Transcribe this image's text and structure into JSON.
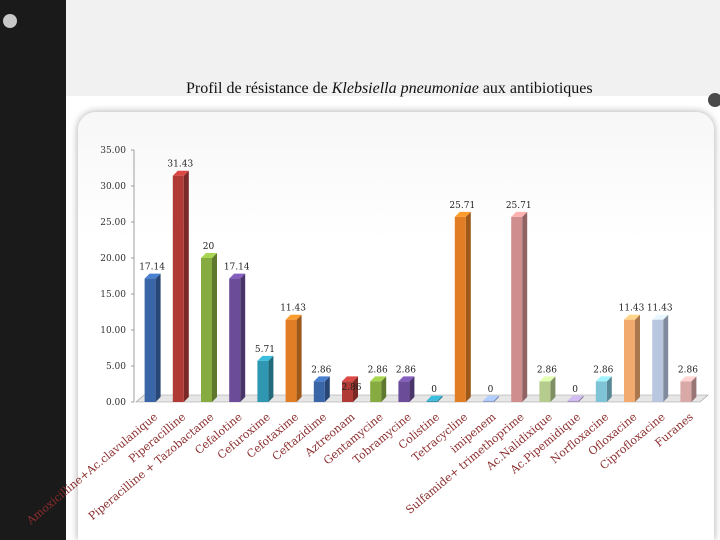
{
  "slide": {
    "title_prefix": "Profil de résistance de ",
    "title_species": "Klebsiella pneumoniae",
    "title_suffix": " aux antibiotiques"
  },
  "colors": {
    "background": "#ffffff",
    "left_band": "#1a1a1a",
    "category_label": "#8b2d2d"
  },
  "chart_data": {
    "type": "bar",
    "title": "Profil de résistance de Klebsiella pneumoniae aux antibiotiques",
    "xlabel": "",
    "ylabel": "",
    "ylim": [
      0,
      35
    ],
    "yticks": [
      "0.00",
      "5.00",
      "10.00",
      "15.00",
      "20.00",
      "25.00",
      "30.00",
      "35.00"
    ],
    "grid": false,
    "legend": "none",
    "categories": [
      "Amoxicilline+Ac.clavulanique",
      "Piperacilline",
      "Piperacilline + Tazobactame",
      "Cefalotine",
      "Cefuroxime",
      "Cefotaxime",
      "Ceftazidime",
      "Aztreonam",
      "Gentamycine",
      "Tobramycine",
      "Colistine",
      "Tetracycline",
      "imipenem",
      "Sulfamide+ trimethoprime",
      "Ac.Nalidixique",
      "Ac.Pipemidique",
      "Norfloxacine",
      "Ofloxacine",
      "Ciprofloxacine",
      "Furanes"
    ],
    "values": [
      17.14,
      31.43,
      20,
      17.14,
      5.71,
      11.43,
      2.86,
      2.86,
      2.86,
      2.86,
      0,
      25.71,
      0,
      25.71,
      2.86,
      0,
      2.86,
      11.43,
      11.43,
      2.86
    ],
    "value_labels": [
      "17.14",
      "31.43",
      "20",
      "17.14",
      "5.71",
      "11.43",
      "2.86",
      "2.86",
      "2.86",
      "2.86",
      "0",
      "25.71",
      "0",
      "25.71",
      "2.86",
      "0",
      "2.86",
      "11.43",
      "11.43",
      "2.86"
    ],
    "bar_colors": [
      "#3a66a8",
      "#b03a36",
      "#86ab41",
      "#6a4c99",
      "#2f97b1",
      "#e07d25",
      "#3a66a8",
      "#b03a36",
      "#86ab41",
      "#6a4c99",
      "#2f97b1",
      "#e07d25",
      "#8ea4cc",
      "#cf8e8d",
      "#b5cc8e",
      "#a896c3",
      "#7fc3d6",
      "#f3aa6f",
      "#b9c6e0",
      "#d9a9a7"
    ]
  }
}
